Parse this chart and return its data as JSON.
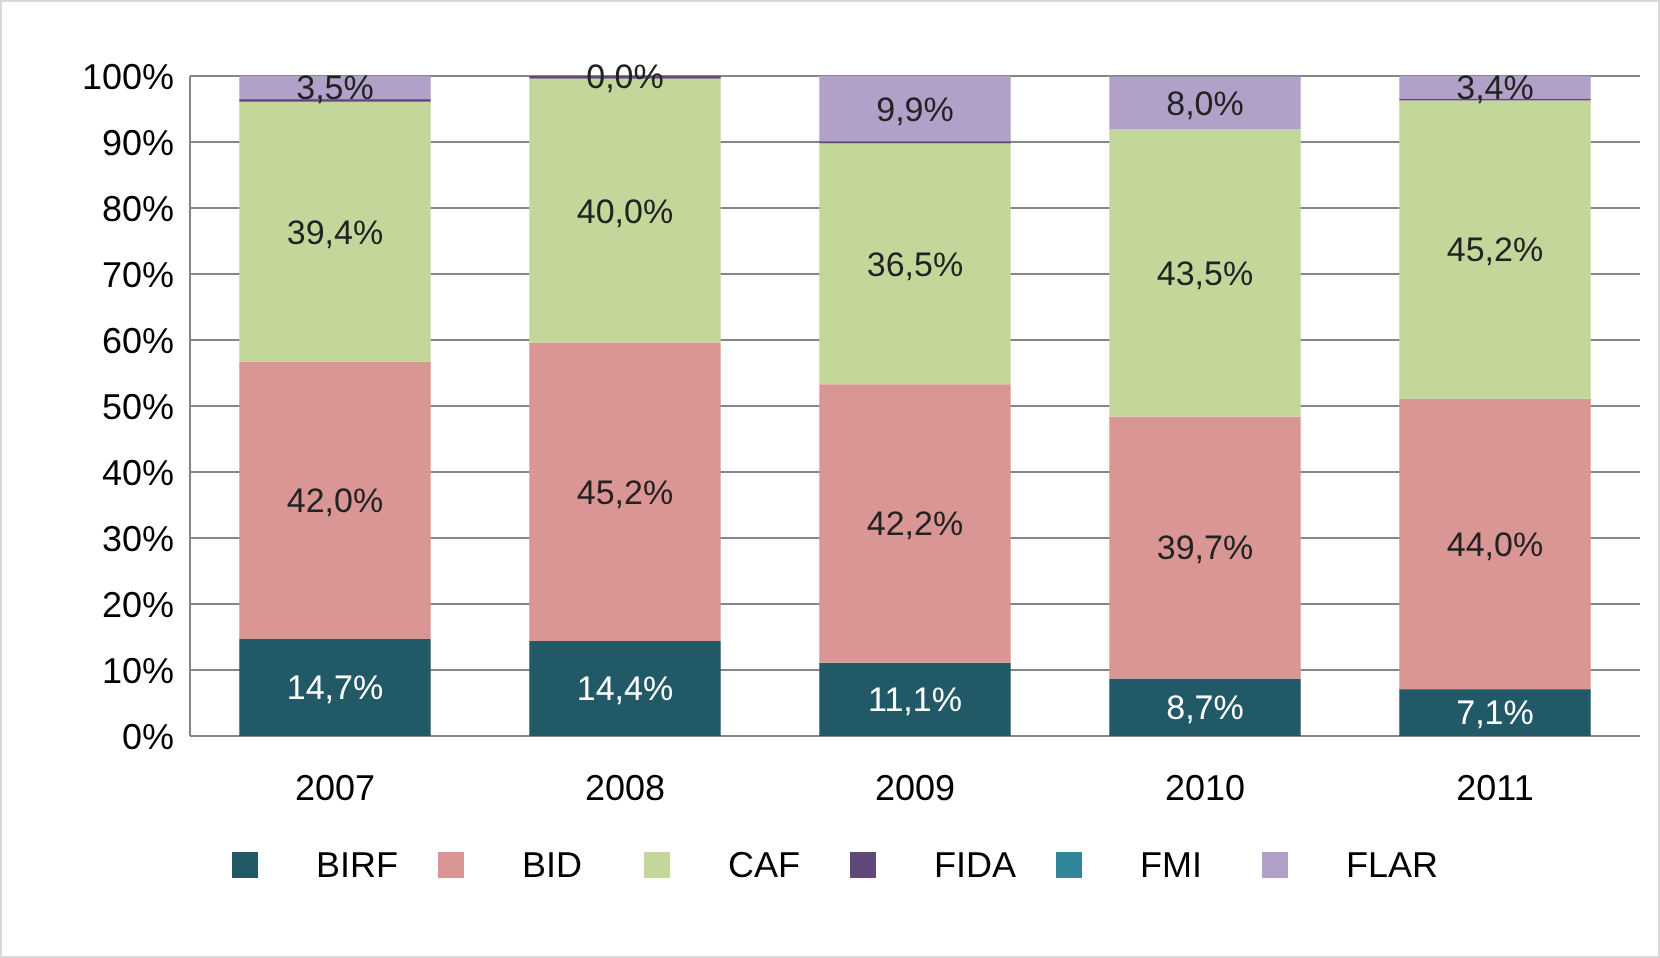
{
  "chart_data": {
    "type": "bar",
    "stacked": true,
    "categories": [
      "2007",
      "2008",
      "2009",
      "2010",
      "2011"
    ],
    "series": [
      {
        "name": "BIRF",
        "color": "#215967",
        "values": [
          14.7,
          14.4,
          11.1,
          8.7,
          7.1
        ],
        "value_labels": [
          "14,7%",
          "14,4%",
          "11,1%",
          "8,7%",
          "7,1%"
        ]
      },
      {
        "name": "BID",
        "color": "#da9694",
        "values": [
          42.0,
          45.2,
          42.2,
          39.7,
          44.0
        ],
        "value_labels": [
          "42,0%",
          "45,2%",
          "42,2%",
          "39,7%",
          "44,0%"
        ]
      },
      {
        "name": "CAF",
        "color": "#c4d79b",
        "values": [
          39.4,
          40.0,
          36.5,
          43.5,
          45.2
        ],
        "value_labels": [
          "39,4%",
          "40,0%",
          "36,5%",
          "43,5%",
          "45,2%"
        ]
      },
      {
        "name": "FIDA",
        "color": "#60497a",
        "values": [
          0.4,
          0.4,
          0.3,
          null,
          0.3
        ]
      },
      {
        "name": "FMI",
        "color": "#31869b",
        "values": [
          0,
          0,
          0,
          0,
          0
        ]
      },
      {
        "name": "FLAR",
        "color": "#b1a0c7",
        "values": [
          3.5,
          0.0,
          9.9,
          8.0,
          3.4
        ],
        "value_labels": [
          "3,5%",
          "0,0%",
          "9,9%",
          "8,0%",
          "3,4%"
        ]
      }
    ],
    "ylim": [
      0,
      100
    ],
    "yticks": [
      {
        "value": 0,
        "label": "0%"
      },
      {
        "value": 10,
        "label": "10%"
      },
      {
        "value": 20,
        "label": "20%"
      },
      {
        "value": 30,
        "label": "30%"
      },
      {
        "value": 40,
        "label": "40%"
      },
      {
        "value": 50,
        "label": "50%"
      },
      {
        "value": 60,
        "label": "60%"
      },
      {
        "value": 70,
        "label": "70%"
      },
      {
        "value": 80,
        "label": "80%"
      },
      {
        "value": 90,
        "label": "90%"
      },
      {
        "value": 100,
        "label": "100%"
      }
    ],
    "grid": "y",
    "legend": "bottom"
  }
}
